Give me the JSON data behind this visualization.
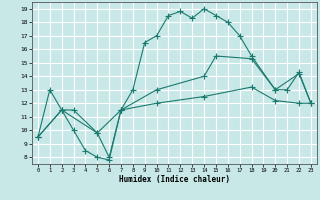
{
  "xlabel": "Humidex (Indice chaleur)",
  "xlim": [
    -0.5,
    23.5
  ],
  "ylim": [
    7.5,
    19.5
  ],
  "xticks": [
    0,
    1,
    2,
    3,
    4,
    5,
    6,
    7,
    8,
    9,
    10,
    11,
    12,
    13,
    14,
    15,
    16,
    17,
    18,
    19,
    20,
    21,
    22,
    23
  ],
  "yticks": [
    8,
    9,
    10,
    11,
    12,
    13,
    14,
    15,
    16,
    17,
    18,
    19
  ],
  "bg_color": "#c8e8e8",
  "line_color": "#1a7a6e",
  "grid_color": "#ffffff",
  "line1_x": [
    0,
    1,
    2,
    3,
    4,
    5,
    6,
    7,
    8,
    9,
    10,
    11,
    12,
    13,
    14,
    15,
    16,
    17,
    18,
    20,
    22,
    23
  ],
  "line1_y": [
    9.5,
    13,
    11.5,
    10,
    8.5,
    8,
    7.8,
    11.5,
    13,
    16.5,
    17,
    18.5,
    18.8,
    18.3,
    19,
    18.5,
    18,
    17,
    15.5,
    13,
    14.2,
    12
  ],
  "line2_x": [
    0,
    2,
    3,
    5,
    6,
    7,
    10,
    14,
    15,
    18,
    20,
    21,
    22,
    23
  ],
  "line2_y": [
    9.5,
    11.5,
    11.5,
    9.8,
    8,
    11.5,
    13,
    14,
    15.5,
    15.3,
    13,
    13,
    14.3,
    12
  ],
  "line3_x": [
    0,
    2,
    5,
    7,
    10,
    14,
    18,
    20,
    22,
    23
  ],
  "line3_y": [
    9.5,
    11.5,
    9.8,
    11.5,
    12,
    12.5,
    13.2,
    12.2,
    12.0,
    12.0
  ]
}
